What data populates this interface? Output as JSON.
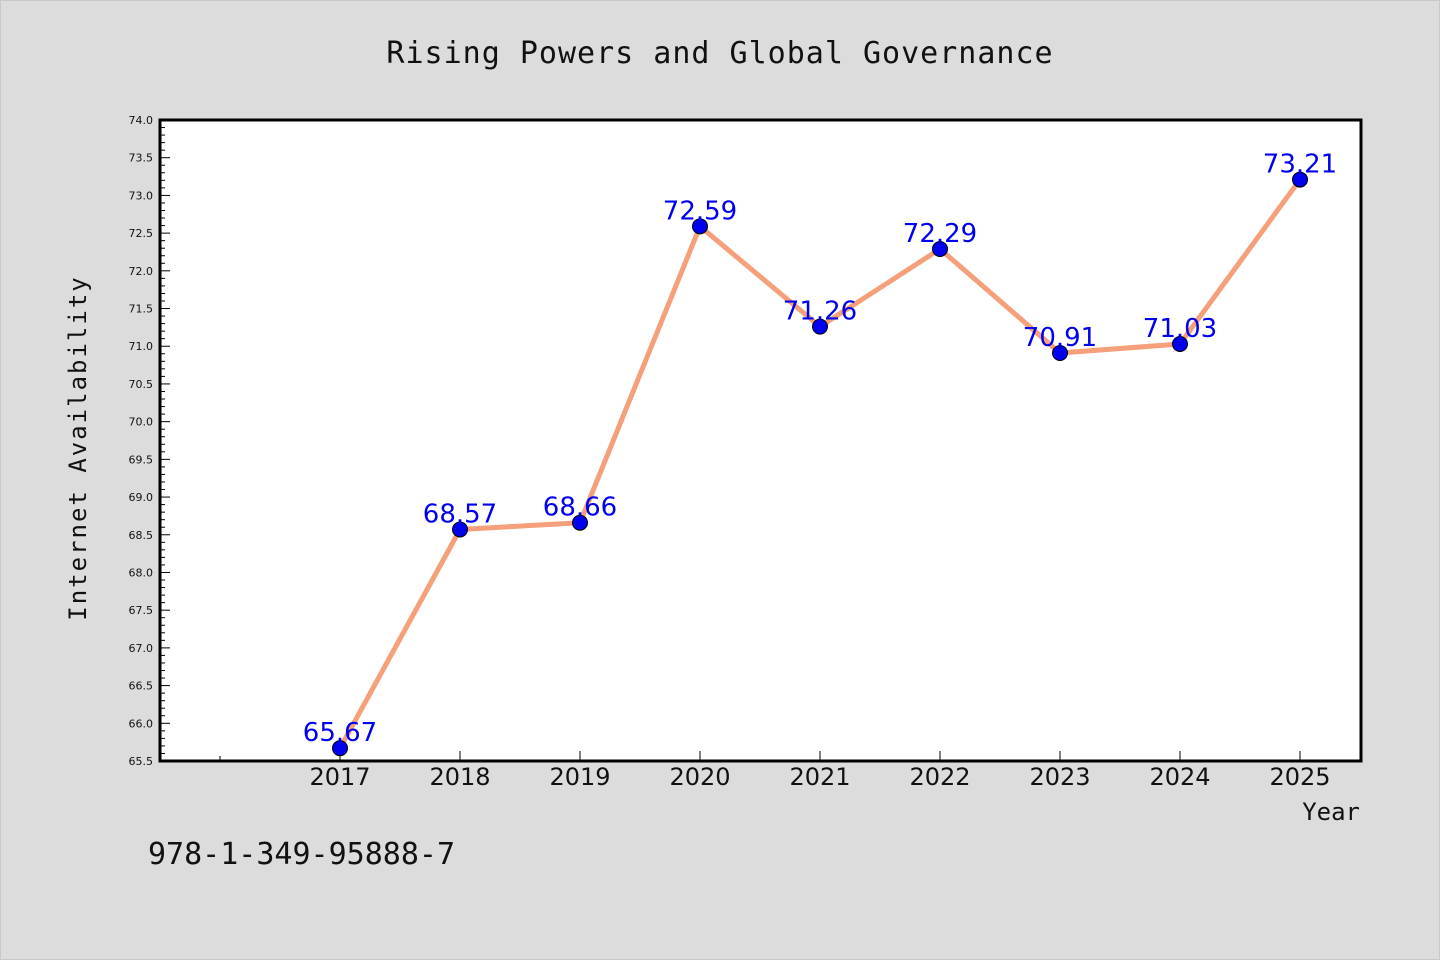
{
  "chart_data": {
    "type": "line",
    "title": "Rising Powers and Global Governance",
    "xlabel": "Year",
    "ylabel": "Internet Availability",
    "categories": [
      "2017",
      "2018",
      "2019",
      "2020",
      "2021",
      "2022",
      "2023",
      "2024",
      "2025"
    ],
    "series": [
      {
        "values": [
          65.67,
          68.57,
          68.66,
          72.59,
          71.26,
          72.29,
          70.91,
          71.03,
          73.21
        ]
      }
    ],
    "data_labels": [
      "65.67",
      "68.57",
      "68.66",
      "72.59",
      "71.26",
      "72.29",
      "70.91",
      "71.03",
      "73.21"
    ],
    "yticks": [
      "65.5",
      "66.0",
      "66.5",
      "67.0",
      "67.5",
      "68.0",
      "68.5",
      "69.0",
      "69.5",
      "70.0",
      "70.5",
      "71.0",
      "71.5",
      "72.0",
      "72.5",
      "73.0",
      "73.5",
      "74.0"
    ],
    "ylim": [
      65.5,
      74.0
    ],
    "grid": false,
    "legend": "none",
    "colors": {
      "line": "#f5a07a",
      "marker": "#0000ee",
      "label": "#0000ee",
      "background": "#dcdcdc",
      "plot_background": "#ffffff"
    }
  },
  "footer": {
    "identifier": "978-1-349-95888-7"
  }
}
